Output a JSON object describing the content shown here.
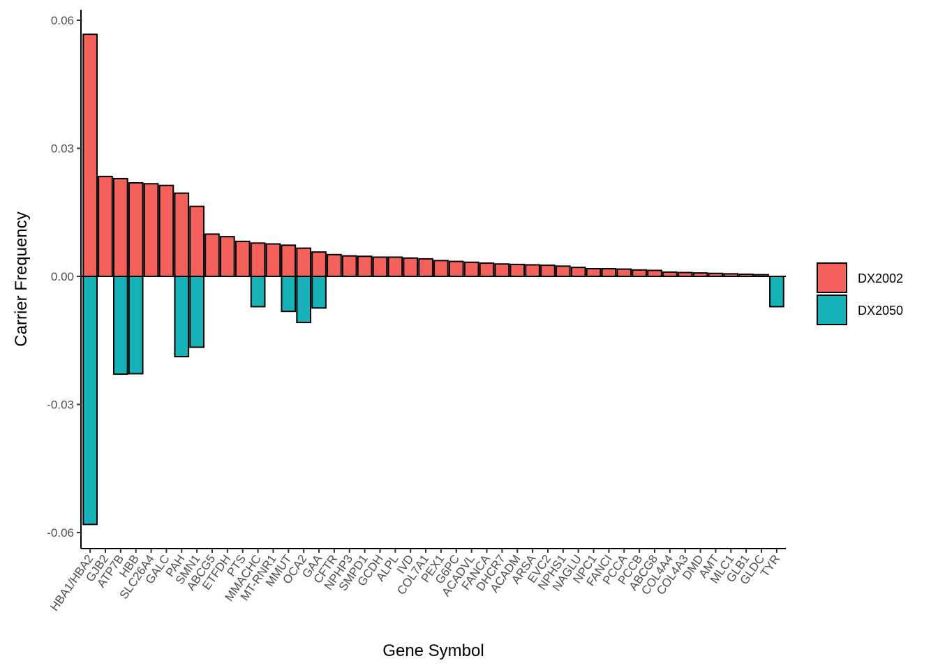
{
  "chart_data": {
    "type": "bar",
    "xlabel": "Gene Symbol",
    "ylabel": "Carrier Frequency",
    "ylim": [
      -0.063,
      0.062
    ],
    "yticks": [
      0.06,
      0.03,
      0.0,
      -0.03,
      -0.06
    ],
    "ytick_labels": [
      "0.06",
      "0.03",
      "0.00",
      "-0.03",
      "-0.06"
    ],
    "grid": false,
    "legend_position": "right",
    "categories": [
      "HBA1/HBA2",
      "GJB2",
      "ATP7B",
      "HBB",
      "SLC26A4",
      "GALC",
      "PAH",
      "SMN1",
      "ABCG5",
      "ETFDH",
      "PTS",
      "MMACHC",
      "MT-RNR1",
      "MMUT",
      "OCA2",
      "GAA",
      "CFTR",
      "NPHP3",
      "SMPD1",
      "GCDH",
      "ALPL",
      "IVD",
      "COL7A1",
      "PEX1",
      "G6PC",
      "ACADVL",
      "FANCA",
      "DHCR7",
      "ACADM",
      "ARSA",
      "EVC2",
      "NPHS1",
      "NAGLU",
      "NPC1",
      "FANCI",
      "PCCA",
      "PCCB",
      "ABCG8",
      "COL4A4",
      "COL4A3",
      "DMD",
      "AMT",
      "MLC1",
      "GLB1",
      "GLDC",
      "TYR"
    ],
    "series": [
      {
        "name": "DX2002",
        "color": "#F8766D",
        "values": [
          0.0567,
          0.0234,
          0.0229,
          0.0219,
          0.0217,
          0.0213,
          0.0195,
          0.0164,
          0.0099,
          0.0093,
          0.0082,
          0.0078,
          0.0076,
          0.0073,
          0.0066,
          0.0057,
          0.0051,
          0.0048,
          0.0047,
          0.0045,
          0.0045,
          0.0043,
          0.0041,
          0.0037,
          0.0035,
          0.0033,
          0.0031,
          0.0029,
          0.0028,
          0.0027,
          0.0026,
          0.0024,
          0.0021,
          0.0018,
          0.0018,
          0.0017,
          0.0015,
          0.0014,
          0.001,
          0.0009,
          0.0008,
          0.0007,
          0.0006,
          0.0005,
          0.0004,
          0
        ]
      },
      {
        "name": "DX2050",
        "color": "#00BFC4",
        "values": [
          -0.0581,
          0,
          -0.0229,
          -0.0228,
          0,
          0,
          -0.0188,
          -0.0166,
          0,
          0,
          0,
          -0.0071,
          0,
          -0.0082,
          -0.0108,
          -0.0074,
          0,
          0,
          0,
          0,
          0,
          0,
          0,
          0,
          0,
          0,
          0,
          0,
          0,
          0,
          0,
          0,
          0,
          0,
          0,
          0,
          0,
          0,
          0,
          0,
          0,
          0,
          0,
          0,
          0,
          -0.0071
        ]
      }
    ],
    "display_colors": {
      "DX2002": "#F3615A",
      "DX2050": "#17B2B8"
    }
  }
}
